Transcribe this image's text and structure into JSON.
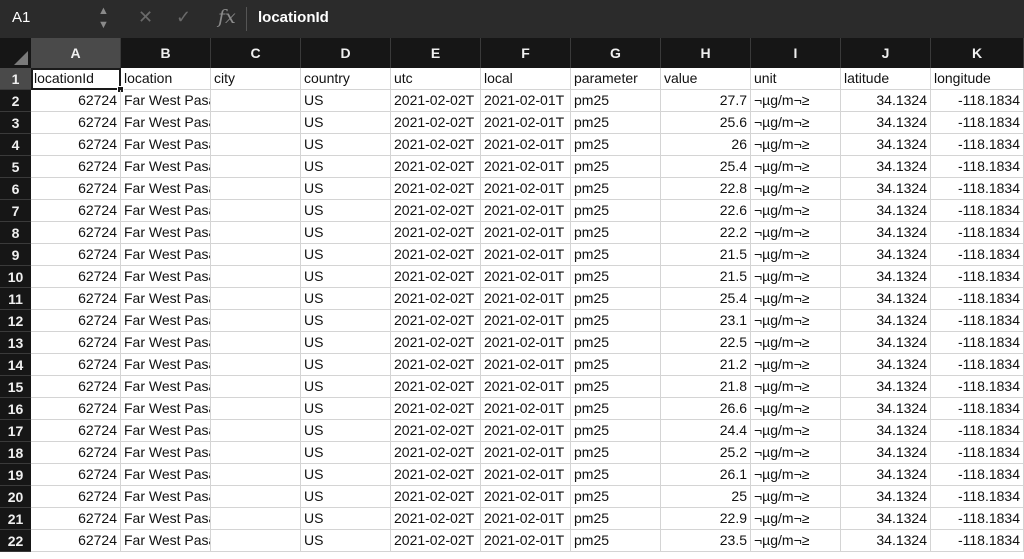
{
  "formula_bar": {
    "name_box": "A1",
    "name_box_arrows": "▲▼",
    "cancel_icon": "✕",
    "enter_icon": "✓",
    "fx_label": "fx",
    "value": "locationId"
  },
  "columns": [
    "A",
    "B",
    "C",
    "D",
    "E",
    "F",
    "G",
    "H",
    "I",
    "J",
    "K"
  ],
  "header_row": {
    "row_number": "1",
    "cells": [
      "locationId",
      "location",
      "city",
      "country",
      "utc",
      "local",
      "parameter",
      "value",
      "unit",
      "latitude",
      "longitude"
    ]
  },
  "rows": [
    {
      "n": "2",
      "value": "27.7"
    },
    {
      "n": "3",
      "value": "25.6"
    },
    {
      "n": "4",
      "value": "26"
    },
    {
      "n": "5",
      "value": "25.4"
    },
    {
      "n": "6",
      "value": "22.8"
    },
    {
      "n": "7",
      "value": "22.6"
    },
    {
      "n": "8",
      "value": "22.2"
    },
    {
      "n": "9",
      "value": "21.5"
    },
    {
      "n": "10",
      "value": "21.5"
    },
    {
      "n": "11",
      "value": "25.4"
    },
    {
      "n": "12",
      "value": "23.1"
    },
    {
      "n": "13",
      "value": "22.5"
    },
    {
      "n": "14",
      "value": "21.2"
    },
    {
      "n": "15",
      "value": "21.8"
    },
    {
      "n": "16",
      "value": "26.6"
    },
    {
      "n": "17",
      "value": "24.4"
    },
    {
      "n": "18",
      "value": "25.2"
    },
    {
      "n": "19",
      "value": "26.1"
    },
    {
      "n": "20",
      "value": "25"
    },
    {
      "n": "21",
      "value": "22.9"
    },
    {
      "n": "22",
      "value": "23.5"
    }
  ],
  "row_common": {
    "locationId": "62724",
    "location": "Far West Pasadena",
    "city": "",
    "country": "US",
    "utc": "2021-02-02T",
    "local": "2021-02-01T",
    "parameter": "pm25",
    "unit": "¬µg/m¬≥",
    "latitude": "34.1324",
    "longitude": "-118.1834"
  },
  "colors": {
    "header_bg": "#161616",
    "selected_header_bg": "#4a4a4a",
    "formula_bar_bg": "#2b2b2b",
    "gridline": "#d4d4d4"
  }
}
